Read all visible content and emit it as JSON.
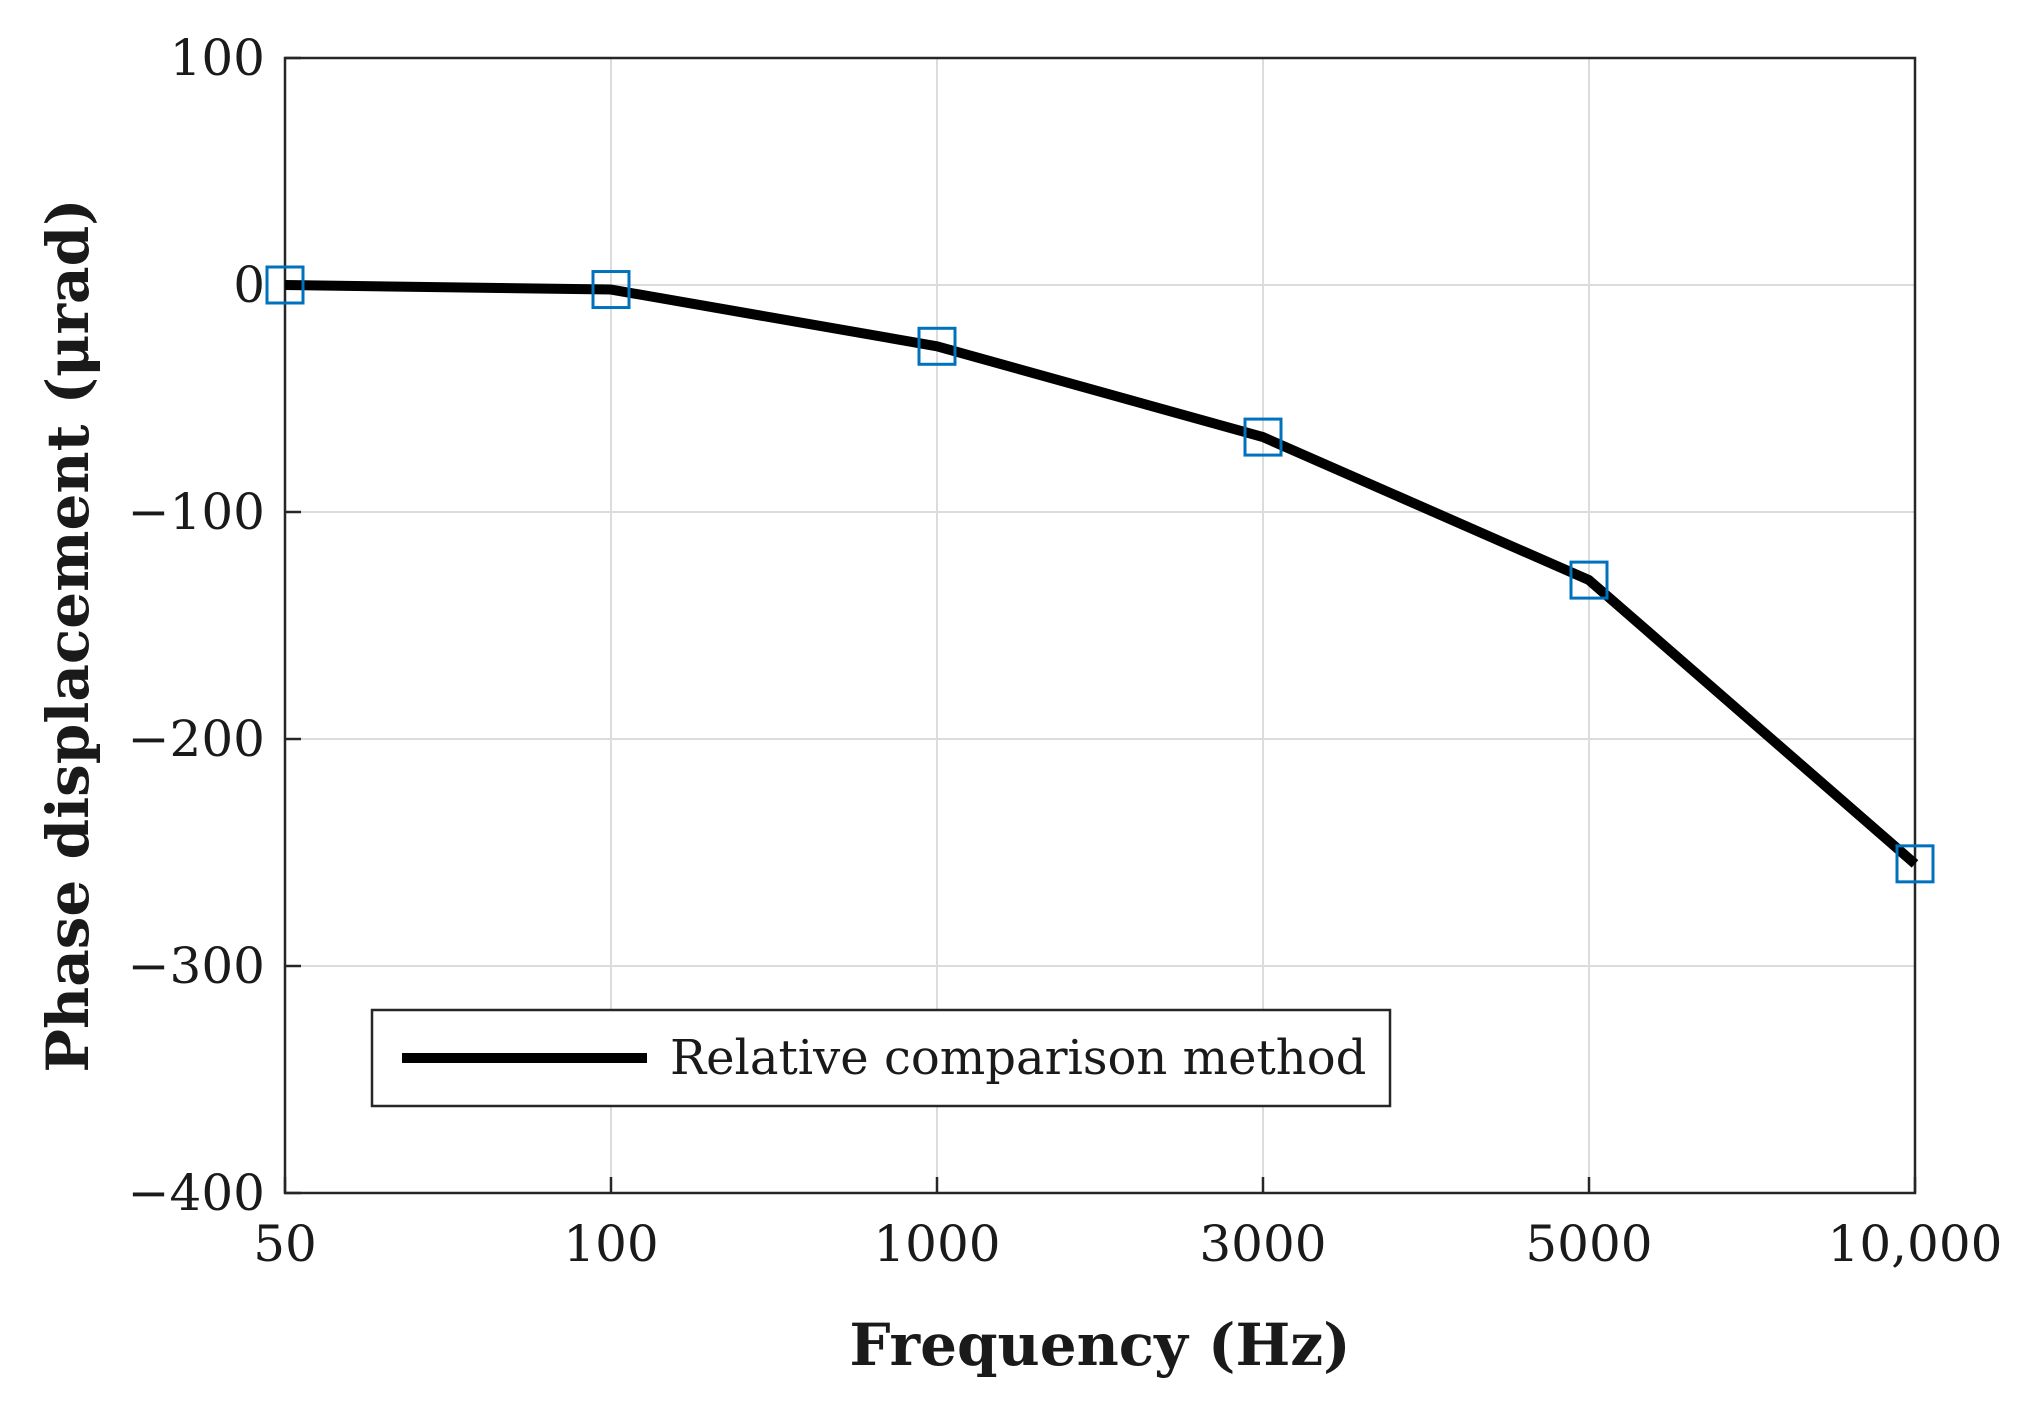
{
  "chart_data": {
    "type": "line",
    "title": "",
    "xlabel": "Frequency (Hz)",
    "ylabel": "Phase displacement (μrad)",
    "categories": [
      "50",
      "100",
      "1000",
      "3000",
      "5000",
      "10,000"
    ],
    "series": [
      {
        "name": "Relative comparison method",
        "values": [
          0,
          -2,
          -27,
          -67,
          -130,
          -255
        ],
        "line_color": "#000000",
        "marker": "square",
        "marker_color": "#0072BD"
      }
    ],
    "ylim": [
      -400,
      100
    ],
    "yticks": [
      100,
      0,
      -100,
      -200,
      -300,
      -400
    ],
    "ytick_labels": [
      "100",
      "0",
      "−100",
      "−200",
      "−300",
      "−400"
    ],
    "grid": true,
    "legend": {
      "position": "bottom-left",
      "entries": [
        "Relative comparison method"
      ]
    }
  }
}
